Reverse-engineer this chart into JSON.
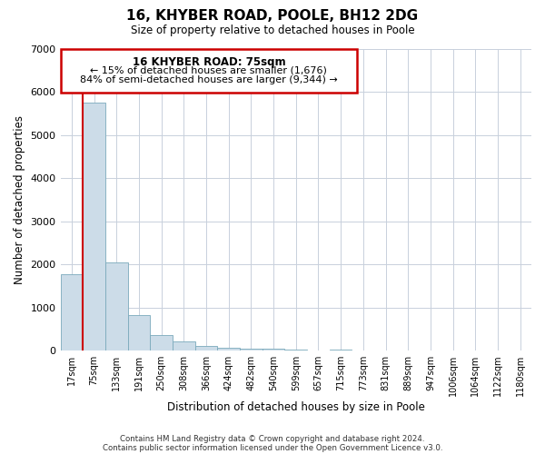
{
  "title_line1": "16, KHYBER ROAD, POOLE, BH12 2DG",
  "title_line2": "Size of property relative to detached houses in Poole",
  "xlabel": "Distribution of detached houses by size in Poole",
  "ylabel": "Number of detached properties",
  "bar_color": "#ccdce8",
  "bar_edge_color": "#7aaabb",
  "grid_color": "#c8d0dc",
  "background_color": "#ffffff",
  "annotation_border_color": "#cc0000",
  "marker_line_color": "#cc0000",
  "bin_labels": [
    "17sqm",
    "75sqm",
    "133sqm",
    "191sqm",
    "250sqm",
    "308sqm",
    "366sqm",
    "424sqm",
    "482sqm",
    "540sqm",
    "599sqm",
    "657sqm",
    "715sqm",
    "773sqm",
    "831sqm",
    "889sqm",
    "947sqm",
    "1006sqm",
    "1064sqm",
    "1122sqm",
    "1180sqm"
  ],
  "bar_heights": [
    1780,
    5750,
    2050,
    820,
    360,
    215,
    100,
    55,
    45,
    40,
    30,
    0,
    25,
    0,
    0,
    0,
    0,
    0,
    0,
    0,
    0
  ],
  "ylim": [
    0,
    7000
  ],
  "yticks": [
    0,
    1000,
    2000,
    3000,
    4000,
    5000,
    6000,
    7000
  ],
  "marker_bin_index": 1,
  "annotation_text_line1": "16 KHYBER ROAD: 75sqm",
  "annotation_text_line2": "← 15% of detached houses are smaller (1,676)",
  "annotation_text_line3": "84% of semi-detached houses are larger (9,344) →",
  "footer_line1": "Contains HM Land Registry data © Crown copyright and database right 2024.",
  "footer_line2": "Contains public sector information licensed under the Open Government Licence v3.0."
}
